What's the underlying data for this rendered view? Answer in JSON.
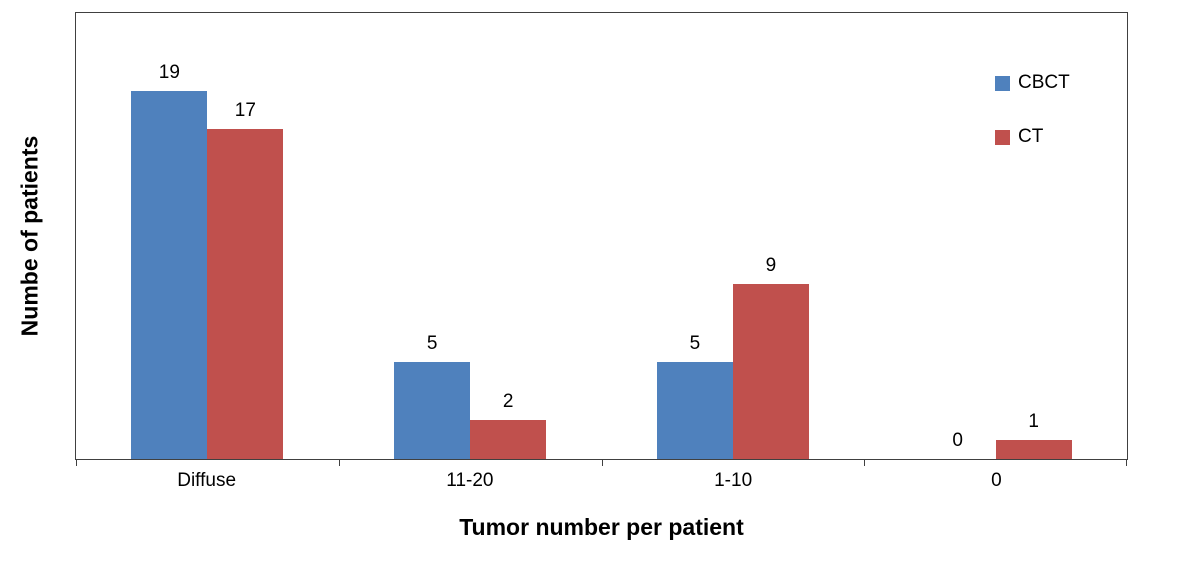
{
  "chart_data": {
    "type": "bar",
    "title": "",
    "categories": [
      "Diffuse",
      "11-20",
      "1-10",
      "0"
    ],
    "series": [
      {
        "name": "CBCT",
        "color": "#4F81BD",
        "values": [
          19,
          5,
          5,
          0
        ]
      },
      {
        "name": "CT",
        "color": "#C0504D",
        "values": [
          17,
          2,
          9,
          1
        ]
      }
    ],
    "xlabel": "Tumor number per patient",
    "ylabel": "Numbe of patients",
    "ylim": [
      0,
      23
    ],
    "grid": false,
    "legend_position": "top-right",
    "axis_color": "#404040"
  }
}
